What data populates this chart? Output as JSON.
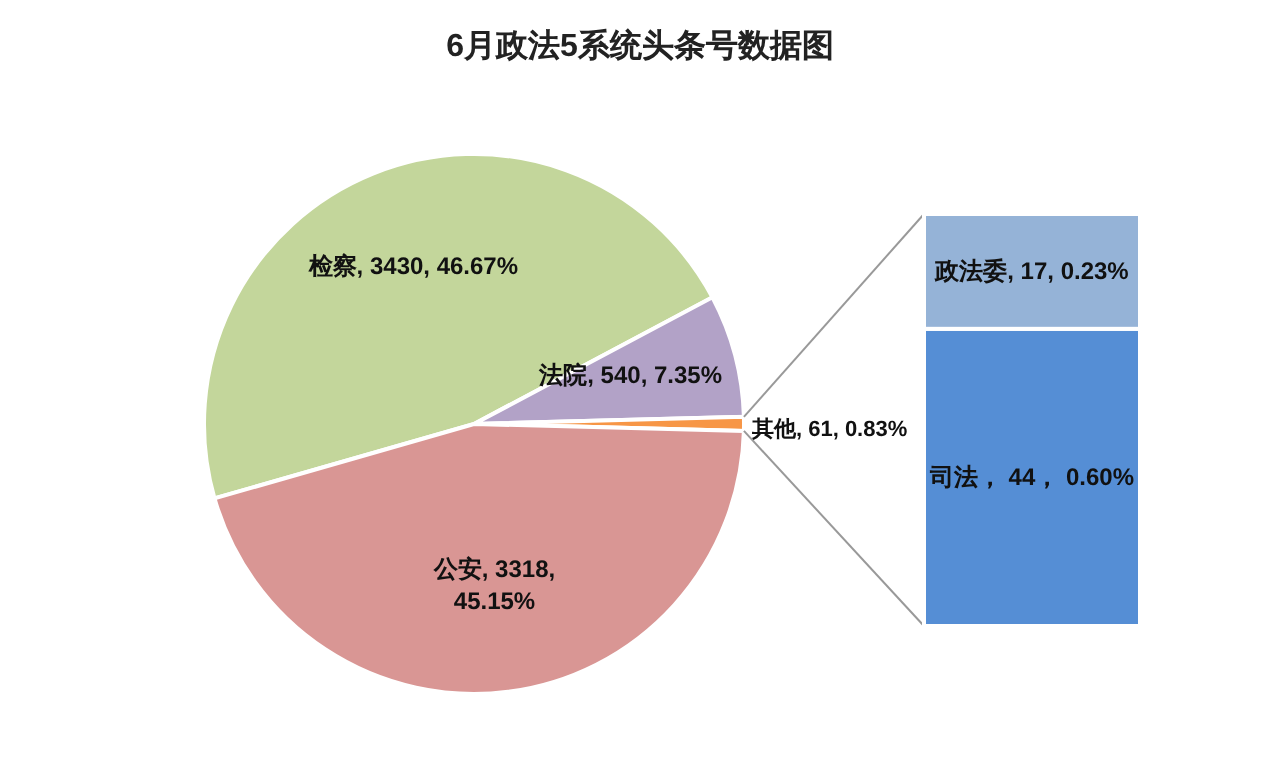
{
  "chart_data": [
    {
      "type": "pie",
      "title": "6月政法5系统头条号数据图",
      "categories": [
        "检察",
        "法院",
        "其他",
        "公安"
      ],
      "values": [
        3430,
        540,
        61,
        3318
      ],
      "colors": [
        "#c3d69b",
        "#b2a2c7",
        "#f79646",
        "#d99694"
      ],
      "value_labels": [
        ", 3430, 46.67%",
        ", 540, 7.35%",
        ", 61, 0.83%",
        ", 3318, 45.15%"
      ]
    },
    {
      "type": "bar",
      "stacked": true,
      "categories": [
        null
      ],
      "series": [
        {
          "name": "司法",
          "color": "#558ed5",
          "values": [
            44
          ],
          "value_labels": [
            "， 44， 0.60%"
          ]
        },
        {
          "name": "政法委",
          "color": "#95b3d7",
          "values": [
            17
          ],
          "value_labels": [
            ", 17, 0.23%"
          ]
        }
      ]
    }
  ]
}
